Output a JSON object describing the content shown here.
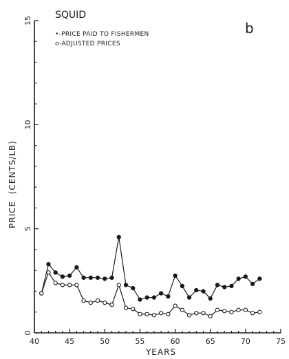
{
  "chart_data": {
    "type": "line",
    "title": "SQUID",
    "panel_label": "b",
    "xlabel": "YEARS",
    "ylabel": "PRICE  (CENTS/LB)",
    "xlim": [
      40,
      75
    ],
    "ylim": [
      0,
      15
    ],
    "x_ticks": [
      40,
      45,
      50,
      55,
      60,
      65,
      70,
      75
    ],
    "y_ticks": [
      0,
      5,
      10,
      15
    ],
    "grid": false,
    "legend_position": "top-left",
    "x": [
      41,
      42,
      43,
      44,
      45,
      46,
      47,
      48,
      49,
      50,
      51,
      52,
      53,
      54,
      55,
      56,
      57,
      58,
      59,
      60,
      61,
      62,
      63,
      64,
      65,
      66,
      67,
      68,
      69,
      70,
      71,
      72
    ],
    "series": [
      {
        "name": "PRICE PAID TO FISHERMEN",
        "legend_label": "•-PRICE PAID TO FISHERMEN",
        "marker": "filled-circle",
        "values": [
          1.9,
          3.3,
          2.9,
          2.7,
          2.75,
          3.15,
          2.65,
          2.65,
          2.65,
          2.6,
          2.65,
          4.6,
          2.3,
          2.15,
          1.6,
          1.7,
          1.7,
          1.9,
          1.75,
          2.75,
          2.25,
          1.7,
          2.05,
          2.0,
          1.65,
          2.3,
          2.2,
          2.25,
          2.6,
          2.7,
          2.35,
          2.6
        ]
      },
      {
        "name": "ADJUSTED PRICES",
        "legend_label": "o-ADJUSTED PRICES",
        "marker": "open-circle",
        "values": [
          1.9,
          2.9,
          2.4,
          2.3,
          2.3,
          2.3,
          1.55,
          1.45,
          1.55,
          1.45,
          1.35,
          2.3,
          1.2,
          1.15,
          0.9,
          0.9,
          0.85,
          0.95,
          0.9,
          1.3,
          1.1,
          0.85,
          0.95,
          0.95,
          0.8,
          1.1,
          1.05,
          1.0,
          1.1,
          1.1,
          0.95,
          1.0
        ]
      }
    ]
  },
  "colors": {
    "ink": "#1a1a1a",
    "background": "#ffffff"
  }
}
